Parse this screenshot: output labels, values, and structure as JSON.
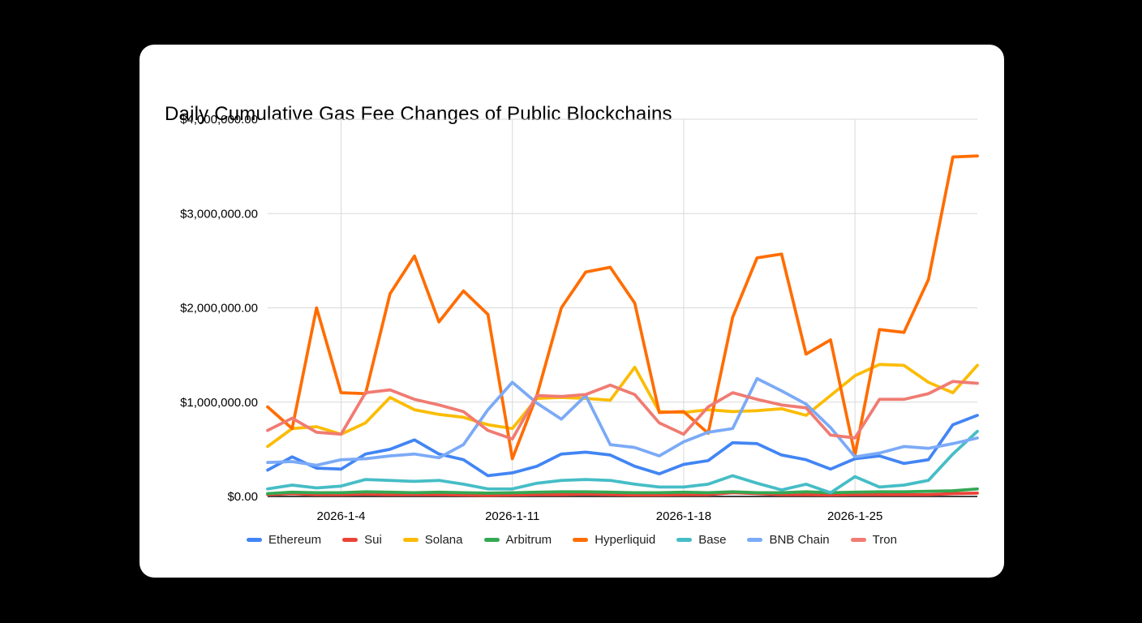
{
  "chart": {
    "title": "Daily Cumulative Gas Fee Changes of Public Blockchains"
  },
  "chart_data": {
    "type": "line",
    "title": "Daily Cumulative Gas Fee Changes of Public Blockchains",
    "xlabel": "",
    "ylabel": "",
    "ylim": [
      0,
      4000000
    ],
    "grid": true,
    "legend_position": "bottom",
    "x": [
      "2026-1-1",
      "2026-1-2",
      "2026-1-3",
      "2026-1-4",
      "2026-1-5",
      "2026-1-6",
      "2026-1-7",
      "2026-1-8",
      "2026-1-9",
      "2026-1-10",
      "2026-1-11",
      "2026-1-12",
      "2026-1-13",
      "2026-1-14",
      "2026-1-15",
      "2026-1-16",
      "2026-1-17",
      "2026-1-18",
      "2026-1-19",
      "2026-1-20",
      "2026-1-21",
      "2026-1-22",
      "2026-1-23",
      "2026-1-24",
      "2026-1-25",
      "2026-1-26",
      "2026-1-27",
      "2026-1-28",
      "2026-1-29",
      "2026-1-30"
    ],
    "y_ticks": [
      {
        "value": 4000000,
        "label": "$4,000,000.00"
      },
      {
        "value": 3000000,
        "label": "$3,000,000.00"
      },
      {
        "value": 2000000,
        "label": "$2,000,000.00"
      },
      {
        "value": 1000000,
        "label": "$1,000,000.00"
      },
      {
        "value": 0,
        "label": "$0.00"
      }
    ],
    "x_ticks": [
      {
        "index": 3,
        "label": "2026-1-4"
      },
      {
        "index": 10,
        "label": "2026-1-11"
      },
      {
        "index": 17,
        "label": "2026-1-18"
      },
      {
        "index": 24,
        "label": "2026-1-25"
      }
    ],
    "series": [
      {
        "name": "Ethereum",
        "color": "#4285F4",
        "values": [
          280000,
          420000,
          300000,
          290000,
          450000,
          500000,
          600000,
          450000,
          390000,
          220000,
          250000,
          320000,
          450000,
          470000,
          440000,
          320000,
          240000,
          340000,
          380000,
          570000,
          560000,
          440000,
          390000,
          290000,
          400000,
          430000,
          350000,
          390000,
          760000,
          860000
        ]
      },
      {
        "name": "Sui",
        "color": "#EA4335",
        "values": [
          20000,
          30000,
          20000,
          20000,
          25000,
          20000,
          20000,
          20000,
          15000,
          10000,
          15000,
          20000,
          20000,
          25000,
          20000,
          15000,
          15000,
          20000,
          20000,
          40000,
          30000,
          20000,
          20000,
          15000,
          20000,
          20000,
          20000,
          20000,
          30000,
          35000
        ]
      },
      {
        "name": "Solana",
        "color": "#FBBC04",
        "values": [
          530000,
          720000,
          740000,
          660000,
          780000,
          1050000,
          920000,
          870000,
          840000,
          760000,
          720000,
          1040000,
          1050000,
          1040000,
          1020000,
          1370000,
          900000,
          890000,
          920000,
          900000,
          910000,
          930000,
          860000,
          1070000,
          1280000,
          1400000,
          1390000,
          1210000,
          1100000,
          1390000
        ]
      },
      {
        "name": "Arbitrum",
        "color": "#34A853",
        "values": [
          30000,
          45000,
          40000,
          40000,
          50000,
          45000,
          40000,
          45000,
          40000,
          35000,
          40000,
          45000,
          50000,
          50000,
          45000,
          40000,
          40000,
          45000,
          40000,
          50000,
          40000,
          40000,
          50000,
          40000,
          45000,
          50000,
          50000,
          55000,
          60000,
          80000
        ]
      },
      {
        "name": "Hyperliquid",
        "color": "#FF6D01",
        "values": [
          950000,
          720000,
          2000000,
          1100000,
          1090000,
          2150000,
          2550000,
          1850000,
          2180000,
          1930000,
          400000,
          1070000,
          2000000,
          2380000,
          2430000,
          2050000,
          890000,
          900000,
          670000,
          1900000,
          2530000,
          2570000,
          1510000,
          1660000,
          440000,
          1770000,
          1740000,
          2300000,
          3600000,
          3610000
        ]
      },
      {
        "name": "Base",
        "color": "#46BDC6",
        "values": [
          80000,
          120000,
          90000,
          110000,
          180000,
          170000,
          160000,
          170000,
          130000,
          80000,
          80000,
          140000,
          170000,
          180000,
          170000,
          130000,
          100000,
          100000,
          130000,
          220000,
          140000,
          70000,
          130000,
          40000,
          210000,
          100000,
          120000,
          170000,
          450000,
          690000
        ]
      },
      {
        "name": "BNB Chain",
        "color": "#7BAAF7",
        "values": [
          360000,
          370000,
          330000,
          390000,
          400000,
          430000,
          450000,
          410000,
          550000,
          920000,
          1210000,
          990000,
          820000,
          1070000,
          550000,
          520000,
          430000,
          580000,
          680000,
          720000,
          1250000,
          1120000,
          980000,
          730000,
          420000,
          460000,
          530000,
          510000,
          560000,
          620000
        ]
      },
      {
        "name": "Tron",
        "color": "#F07B72",
        "values": [
          700000,
          830000,
          680000,
          660000,
          1100000,
          1130000,
          1030000,
          970000,
          900000,
          700000,
          610000,
          1070000,
          1060000,
          1080000,
          1180000,
          1080000,
          780000,
          660000,
          950000,
          1100000,
          1030000,
          970000,
          940000,
          650000,
          620000,
          1030000,
          1030000,
          1090000,
          1220000,
          1200000
        ]
      }
    ]
  },
  "style": {
    "gridline_color": "#d9d9d9",
    "baseline_color": "#424242",
    "axis_label_color": "#000000",
    "card_background": "#ffffff",
    "page_background": "#000000"
  }
}
